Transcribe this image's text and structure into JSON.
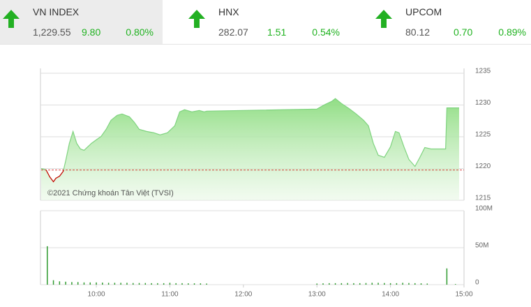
{
  "indices": [
    {
      "name": "VN INDEX",
      "value": "1,229.55",
      "change": "9.80",
      "percent": "0.80%"
    },
    {
      "name": "HNX",
      "value": "282.07",
      "change": "1.51",
      "percent": "0.54%"
    },
    {
      "name": "UPCOM",
      "value": "80.12",
      "change": "0.70",
      "percent": "0.89%"
    }
  ],
  "chart_data": [
    {
      "type": "area",
      "annotation": "©2021 Chứng khoán Tân Việt (TVSI)",
      "color": "#7fd37f",
      "reference": 1219.75,
      "reference_color": "#cc0000",
      "x": [
        555,
        559,
        562,
        565,
        567,
        570,
        573,
        575,
        578,
        581,
        584,
        587,
        590,
        593,
        596,
        600,
        604,
        608,
        612,
        617,
        621,
        627,
        631,
        635,
        641,
        647,
        652,
        658,
        664,
        668,
        672,
        678,
        684,
        688,
        690,
        780,
        786,
        792,
        795,
        800,
        806,
        812,
        818,
        822,
        826,
        830,
        835,
        840,
        844,
        847,
        851,
        855,
        860,
        864,
        868,
        873,
        885,
        886,
        896
      ],
      "values": [
        1220.0,
        1219.78,
        1218.68,
        1217.91,
        1218.46,
        1218.79,
        1219.56,
        1221.21,
        1223.96,
        1225.84,
        1223.96,
        1223.08,
        1222.86,
        1223.41,
        1223.96,
        1224.52,
        1225.07,
        1226.17,
        1227.6,
        1228.37,
        1228.59,
        1228.15,
        1227.27,
        1226.17,
        1225.84,
        1225.62,
        1225.29,
        1225.62,
        1226.72,
        1228.92,
        1229.25,
        1228.92,
        1229.14,
        1228.92,
        1229.03,
        1229.36,
        1230.02,
        1230.57,
        1231.01,
        1230.24,
        1229.47,
        1228.59,
        1227.6,
        1226.72,
        1223.96,
        1222.09,
        1221.76,
        1223.41,
        1225.84,
        1225.62,
        1223.41,
        1221.43,
        1220.33,
        1221.76,
        1223.3,
        1223.08,
        1223.08,
        1229.55,
        1229.55
      ],
      "xlim": [
        555,
        900
      ],
      "ylim": [
        1215,
        1235
      ],
      "yticks": [
        1215,
        1220,
        1225,
        1230,
        1235
      ],
      "grid": true
    },
    {
      "type": "bar",
      "color": "#2e9a2e",
      "x": [
        560,
        565,
        570,
        575,
        580,
        585,
        590,
        595,
        600,
        605,
        610,
        615,
        620,
        625,
        630,
        635,
        640,
        645,
        650,
        655,
        660,
        665,
        670,
        675,
        680,
        685,
        690,
        780,
        785,
        790,
        795,
        800,
        805,
        810,
        815,
        820,
        825,
        830,
        835,
        840,
        845,
        850,
        855,
        860,
        865,
        870,
        886,
        893
      ],
      "values": [
        52,
        6,
        4.5,
        4,
        3.5,
        3.5,
        3,
        3,
        3,
        2.8,
        2.5,
        2.5,
        2.5,
        2.5,
        2.2,
        2.2,
        2.2,
        2,
        2,
        2,
        2.5,
        2,
        2,
        1.8,
        1.8,
        1.8,
        1.5,
        1.5,
        1.8,
        2,
        2,
        2,
        2.2,
        2,
        2,
        2.2,
        2.5,
        2.5,
        2.2,
        2,
        2,
        2.5,
        2.2,
        2,
        1.8,
        1.5,
        22,
        0.8
      ],
      "xlim": [
        555,
        900
      ],
      "xticks": [
        {
          "value": 600,
          "label": "10:00"
        },
        {
          "value": 660,
          "label": "11:00"
        },
        {
          "value": 720,
          "label": "12:00"
        },
        {
          "value": 780,
          "label": "13:00"
        },
        {
          "value": 840,
          "label": "14:00"
        },
        {
          "value": 900,
          "label": "15:00"
        }
      ],
      "ylim": [
        0,
        100
      ],
      "yticks": [
        0,
        {
          "value": 50,
          "label": "50M"
        },
        {
          "value": 100,
          "label": "100M"
        }
      ],
      "grid": true
    }
  ]
}
